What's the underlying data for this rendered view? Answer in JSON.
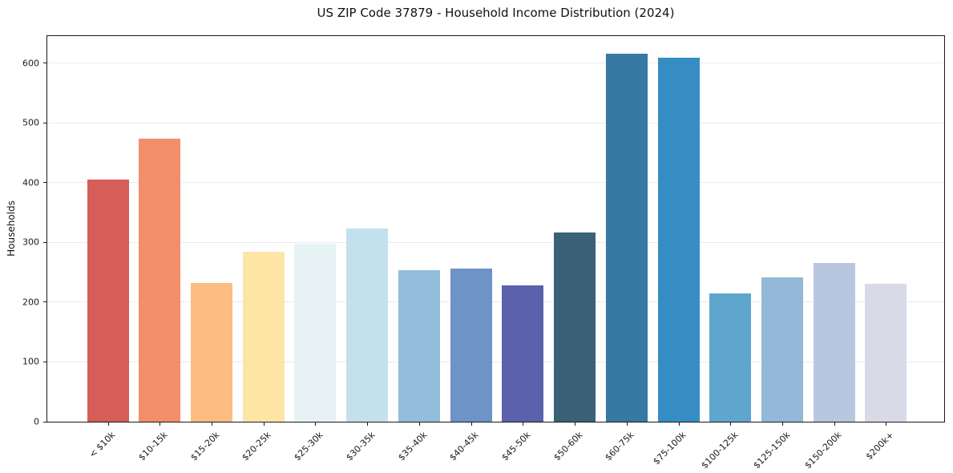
{
  "window": {
    "background": "#ffffff"
  },
  "chart_data": {
    "type": "bar",
    "title": "US ZIP Code 37879 - Household Income Distribution (2024)",
    "xlabel": "",
    "ylabel": "Households",
    "ylim": [
      0,
      645
    ],
    "yticks": [
      0,
      100,
      200,
      300,
      400,
      500,
      600
    ],
    "grid": "horizontal",
    "grid_color": "#e9e9f0",
    "legend": "none",
    "categories": [
      "< $10k",
      "$10-15k",
      "$15-20k",
      "$20-25k",
      "$25-30k",
      "$30-35k",
      "$35-40k",
      "$40-45k",
      "$45-50k",
      "$50-60k",
      "$60-75k",
      "$75-100k",
      "$100-125k",
      "$125-150k",
      "$150-200k",
      "$200k+"
    ],
    "values": [
      405,
      473,
      232,
      284,
      298,
      323,
      253,
      256,
      228,
      317,
      615,
      609,
      214,
      241,
      266,
      230
    ],
    "bar_colors": [
      "#d65d58",
      "#f28e69",
      "#fbbd80",
      "#fde5a6",
      "#e6f2f4",
      "#c3e1ed",
      "#93bdda",
      "#6e93c7",
      "#5c61ab",
      "#3a6175",
      "#3779a2",
      "#368dc4",
      "#5fa6cf",
      "#93b8d8",
      "#b8c7e0",
      "#d8dae8"
    ]
  }
}
